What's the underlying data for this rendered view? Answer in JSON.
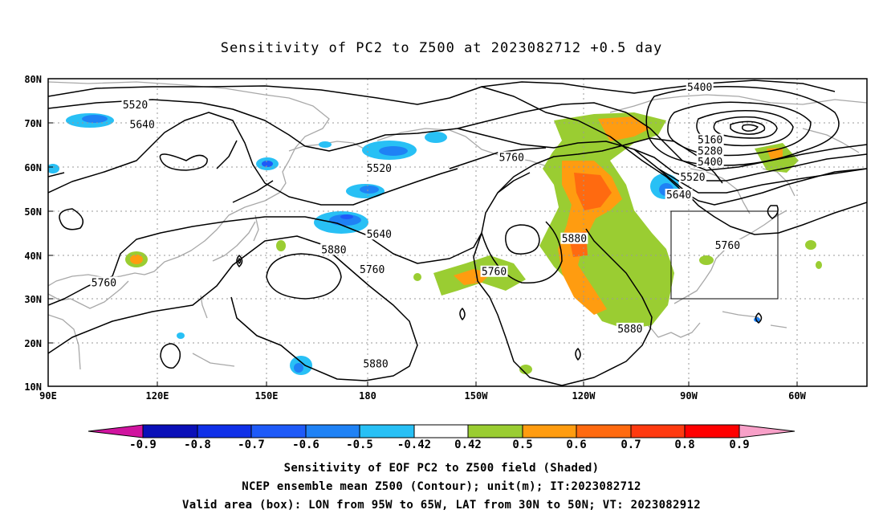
{
  "title": "Sensitivity of PC2 to Z500 at 2023082712 +0.5 day",
  "captions": {
    "line1": "Sensitivity of EOF PC2 to Z500 field (Shaded)",
    "line2": "NCEP ensemble mean Z500 (Contour); unit(m); IT:2023082712",
    "line3": "Valid area (box): LON from 95W to 65W, LAT from 30N to 50N; VT: 2023082912"
  },
  "axes": {
    "lat_ticks": [
      "80N",
      "70N",
      "60N",
      "50N",
      "40N",
      "30N",
      "20N",
      "10N"
    ],
    "lon_ticks": [
      "90E",
      "120E",
      "150E",
      "180",
      "150W",
      "120W",
      "90W",
      "60W"
    ]
  },
  "colorbar": {
    "labels": [
      "-0.9",
      "-0.8",
      "-0.7",
      "-0.6",
      "-0.5",
      "-0.42",
      "0.42",
      "0.5",
      "0.6",
      "0.7",
      "0.8",
      "0.9"
    ],
    "colors": [
      "#d0149f",
      "#0a10b8",
      "#1030e8",
      "#1e5af8",
      "#1f82f5",
      "#28c0f5",
      "#ffffff",
      "#9acd32",
      "#ff9c10",
      "#ff6a10",
      "#ff3a10",
      "#ff0000",
      "#f8a0c8"
    ]
  },
  "contour_labels": [
    {
      "text": "5520",
      "lon": 115,
      "lat": 74
    },
    {
      "text": "5640",
      "lon": 117,
      "lat": 69.5
    },
    {
      "text": "5520",
      "lon": -175,
      "lat": 59.5
    },
    {
      "text": "5640",
      "lon": -175,
      "lat": 44.5
    },
    {
      "text": "5760",
      "lon": -177,
      "lat": 36.5
    },
    {
      "text": "5880",
      "lon": 172,
      "lat": 41
    },
    {
      "text": "5760",
      "lon": 106,
      "lat": 33.5
    },
    {
      "text": "5880",
      "lon": -176,
      "lat": 15
    },
    {
      "text": "5760",
      "lon": -137,
      "lat": 62
    },
    {
      "text": "5760",
      "lon": -142,
      "lat": 36
    },
    {
      "text": "5880",
      "lon": -119,
      "lat": 43.5
    },
    {
      "text": "5880",
      "lon": -103,
      "lat": 23
    },
    {
      "text": "5400",
      "lon": -83,
      "lat": 78
    },
    {
      "text": "5160",
      "lon": -80,
      "lat": 66
    },
    {
      "text": "5280",
      "lon": -80,
      "lat": 63.5
    },
    {
      "text": "5400",
      "lon": -80,
      "lat": 61
    },
    {
      "text": "5520",
      "lon": -85,
      "lat": 57.5
    },
    {
      "text": "5640",
      "lon": -89,
      "lat": 53.5
    },
    {
      "text": "5760",
      "lon": -75,
      "lat": 42
    }
  ],
  "valid_box": {
    "lon_w": -95,
    "lon_e": -65,
    "lat_s": 30,
    "lat_n": 50
  },
  "map_extent": {
    "lon_w": 90,
    "lon_e": -35,
    "lat_s": 10,
    "lat_n": 80
  }
}
